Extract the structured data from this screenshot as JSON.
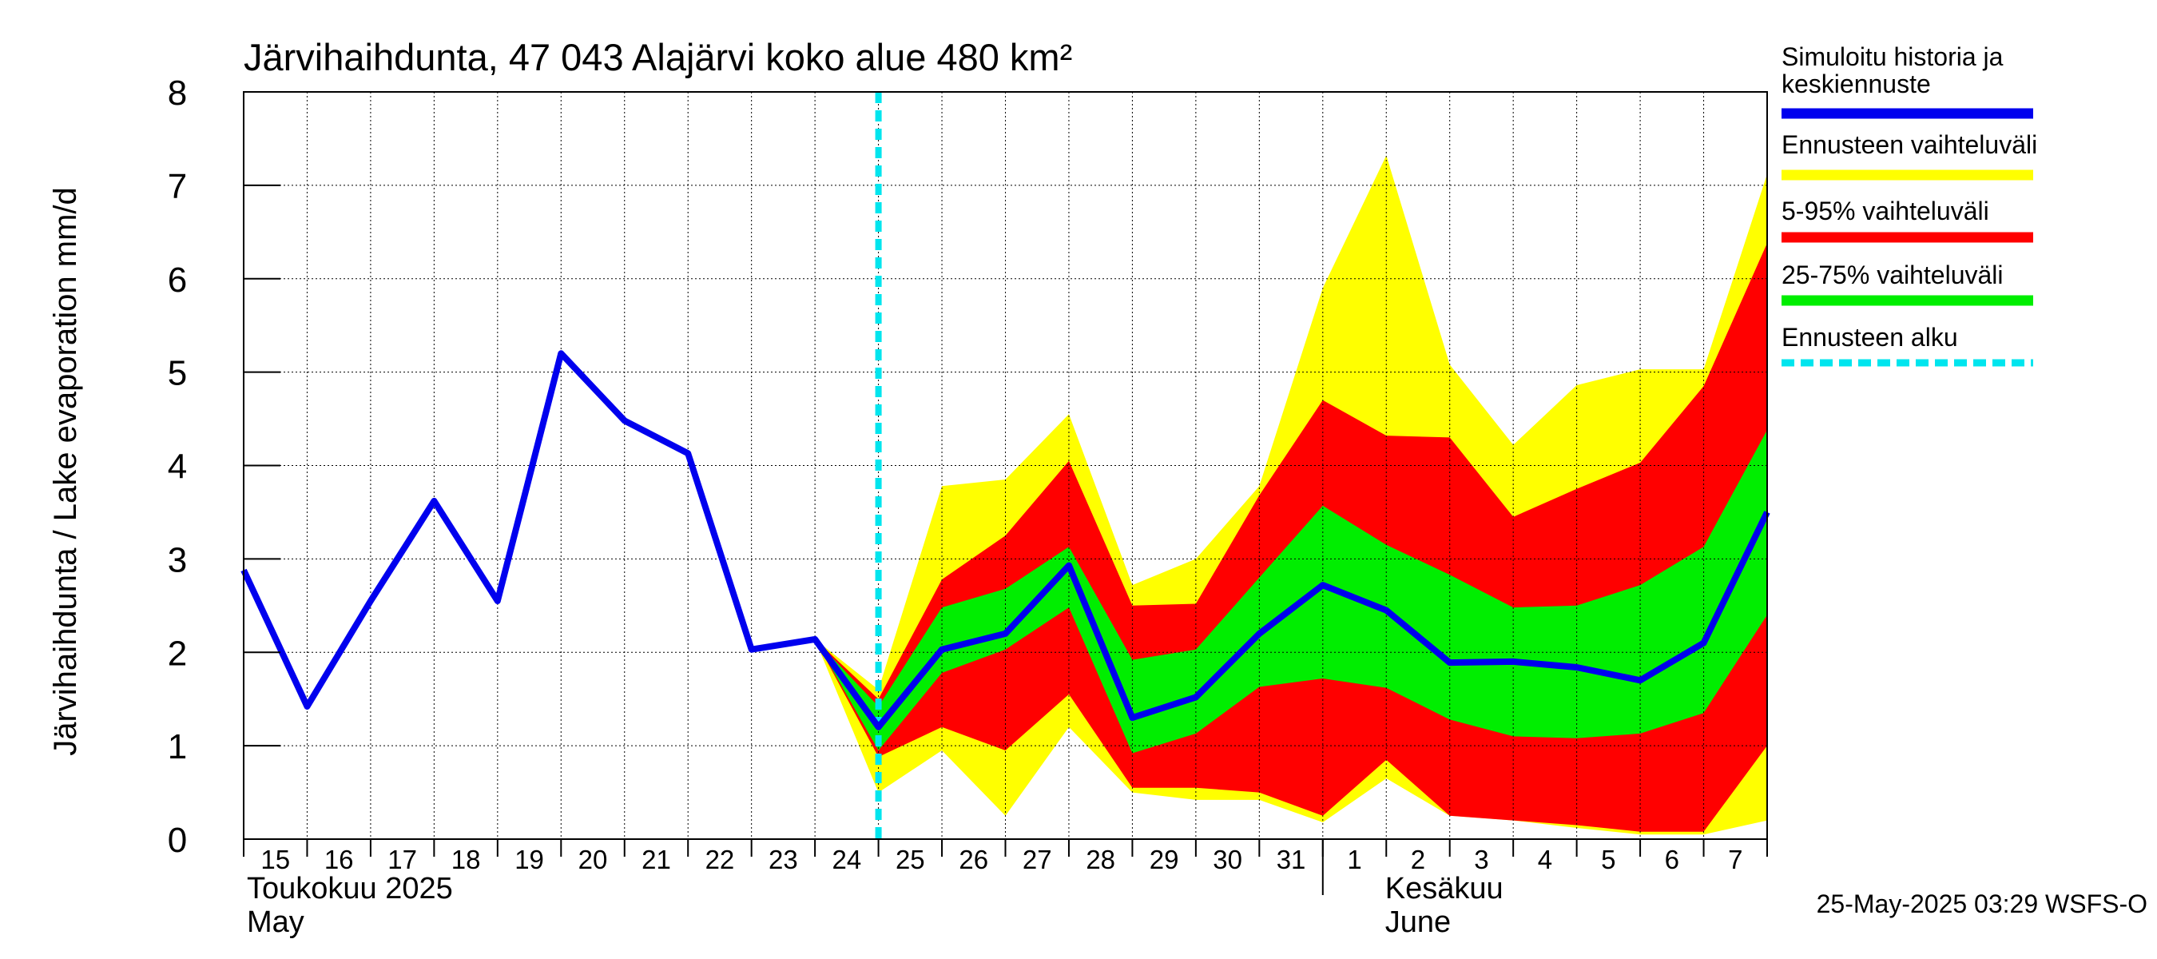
{
  "chart_data": {
    "type": "area",
    "title": "Järvihaihdunta, 47 043 Alajärvi koko alue 480 km²",
    "ylabel": "Järvihaihdunta / Lake evaporation   mm/d",
    "xlabel": "",
    "ylim": [
      0,
      8
    ],
    "yticks": [
      "0",
      "1",
      "2",
      "3",
      "4",
      "5",
      "6",
      "7",
      "8"
    ],
    "grid": true,
    "legend_position": "right",
    "x_day_labels": [
      "15",
      "16",
      "17",
      "18",
      "19",
      "20",
      "21",
      "22",
      "23",
      "24",
      "25",
      "26",
      "27",
      "28",
      "29",
      "30",
      "31",
      "1",
      "2",
      "3",
      "4",
      "5",
      "6",
      "7"
    ],
    "month_labels": [
      {
        "fi": "Toukokuu  2025",
        "en": "May"
      },
      {
        "fi": "Kesäkuu",
        "en": "June"
      }
    ],
    "forecast_start": "2025-05-25",
    "x": [
      "2025-05-15",
      "2025-05-16",
      "2025-05-17",
      "2025-05-18",
      "2025-05-19",
      "2025-05-20",
      "2025-05-21",
      "2025-05-22",
      "2025-05-23",
      "2025-05-24",
      "2025-05-25",
      "2025-05-26",
      "2025-05-27",
      "2025-05-28",
      "2025-05-29",
      "2025-05-30",
      "2025-05-31",
      "2025-06-01",
      "2025-06-02",
      "2025-06-03",
      "2025-06-04",
      "2025-06-05",
      "2025-06-06",
      "2025-06-07",
      "2025-06-08"
    ],
    "series": [
      {
        "name": "Simuloitu historia ja keskiennuste",
        "color": "#0000ee",
        "values": [
          2.88,
          1.42,
          2.55,
          3.62,
          2.55,
          5.2,
          4.48,
          4.13,
          2.03,
          2.14,
          1.2,
          2.03,
          2.2,
          2.93,
          1.3,
          1.52,
          2.2,
          2.72,
          2.45,
          1.89,
          1.9,
          1.84,
          1.7,
          2.1,
          3.5
        ]
      },
      {
        "name": "Ennusteen vaihteluväli",
        "color": "#ffff00",
        "lower": [
          null,
          null,
          null,
          null,
          null,
          null,
          null,
          null,
          null,
          2.14,
          0.5,
          0.95,
          0.25,
          1.2,
          0.5,
          0.42,
          0.42,
          0.18,
          0.65,
          0.25,
          0.2,
          0.12,
          0.05,
          0.05,
          0.2
        ],
        "upper": [
          null,
          null,
          null,
          null,
          null,
          null,
          null,
          null,
          null,
          2.14,
          1.6,
          3.78,
          3.85,
          4.55,
          2.72,
          3.0,
          3.78,
          5.9,
          7.32,
          5.08,
          4.22,
          4.86,
          5.03,
          5.03,
          7.12
        ]
      },
      {
        "name": "5-95% vaihteluväli",
        "color": "#ff0000",
        "lower": [
          null,
          null,
          null,
          null,
          null,
          null,
          null,
          null,
          null,
          2.14,
          0.88,
          1.2,
          0.95,
          1.55,
          0.55,
          0.55,
          0.5,
          0.25,
          0.85,
          0.25,
          0.2,
          0.15,
          0.08,
          0.08,
          1.0
        ],
        "upper": [
          null,
          null,
          null,
          null,
          null,
          null,
          null,
          null,
          null,
          2.14,
          1.5,
          2.78,
          3.25,
          4.05,
          2.5,
          2.52,
          3.68,
          4.7,
          4.32,
          4.3,
          3.45,
          3.75,
          4.03,
          4.85,
          6.38
        ]
      },
      {
        "name": "25-75% vaihteluväli",
        "color": "#00ee00",
        "lower": [
          null,
          null,
          null,
          null,
          null,
          null,
          null,
          null,
          null,
          2.14,
          0.95,
          1.78,
          2.03,
          2.48,
          0.92,
          1.13,
          1.63,
          1.72,
          1.62,
          1.28,
          1.1,
          1.08,
          1.13,
          1.35,
          2.4
        ],
        "upper": [
          null,
          null,
          null,
          null,
          null,
          null,
          null,
          null,
          null,
          2.14,
          1.42,
          2.48,
          2.68,
          3.13,
          1.92,
          2.03,
          2.8,
          3.57,
          3.15,
          2.83,
          2.48,
          2.5,
          2.72,
          3.13,
          4.38
        ]
      },
      {
        "name": "Ennusteen alku",
        "color": "#00e5ee",
        "style": "dashed"
      }
    ]
  },
  "legend": [
    {
      "label": "Simuloitu historia ja keskiennuste",
      "lines": [
        "Simuloitu historia ja",
        "keskiennuste"
      ],
      "color": "#0000ee",
      "style": "solid"
    },
    {
      "label": "Ennusteen vaihteluväli",
      "lines": [
        "Ennusteen vaihteluväli"
      ],
      "color": "#ffff00",
      "style": "solid"
    },
    {
      "label": "5-95% vaihteluväli",
      "lines": [
        "5-95% vaihteluväli"
      ],
      "color": "#ff0000",
      "style": "solid"
    },
    {
      "label": "25-75% vaihteluväli",
      "lines": [
        "25-75% vaihteluväli"
      ],
      "color": "#00ee00",
      "style": "solid"
    },
    {
      "label": "Ennusteen alku",
      "lines": [
        "Ennusteen alku"
      ],
      "color": "#00e5ee",
      "style": "dashed"
    }
  ],
  "footer": "25-May-2025 03:29 WSFS-O"
}
